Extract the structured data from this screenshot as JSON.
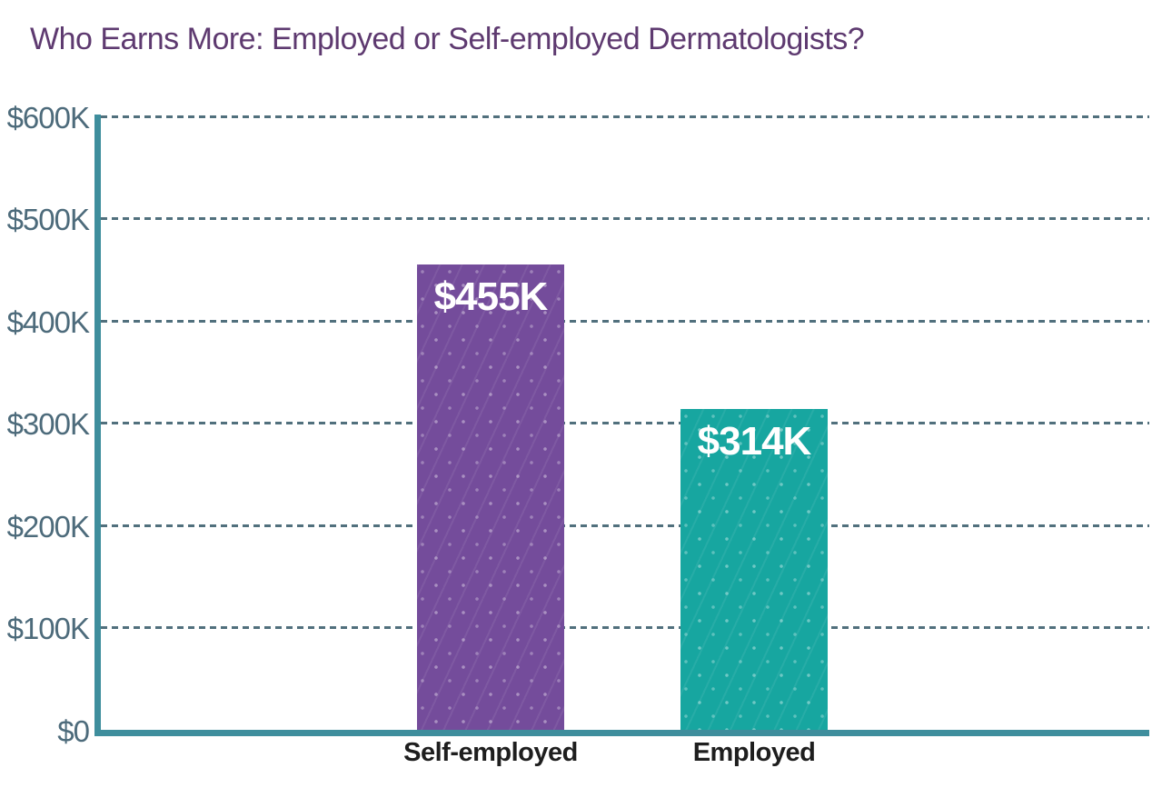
{
  "header": {
    "title": "Who Earns More: Employed or Self-employed Dermatologists?",
    "title_color": "#5E3A70"
  },
  "chart_data": {
    "type": "bar",
    "title": "Who Earns More: Employed or Self-employed Dermatologists?",
    "categories": [
      "Self-employed",
      "Employed"
    ],
    "values": [
      455000,
      314000
    ],
    "value_labels": [
      "$455K",
      "$314K"
    ],
    "bar_colors": [
      "#744C9B",
      "#17A6A0"
    ],
    "xlabel": "",
    "ylabel": "",
    "ylim": [
      0,
      600000
    ],
    "yticks": [
      0,
      100000,
      200000,
      300000,
      400000,
      500000,
      600000
    ],
    "ytick_labels": [
      "$0",
      "$100K",
      "$200K",
      "$300K",
      "$400K",
      "$500K",
      "$600K"
    ],
    "grid": "horizontal-dashed",
    "legend": "none",
    "colors": {
      "axis": "#3F8E9D",
      "gridline": "#51707D",
      "tick_label": "#4D6B7B",
      "category_label": "#1E1E1E",
      "value_label": "#FFFFFF",
      "background": "#FFFFFF"
    }
  }
}
